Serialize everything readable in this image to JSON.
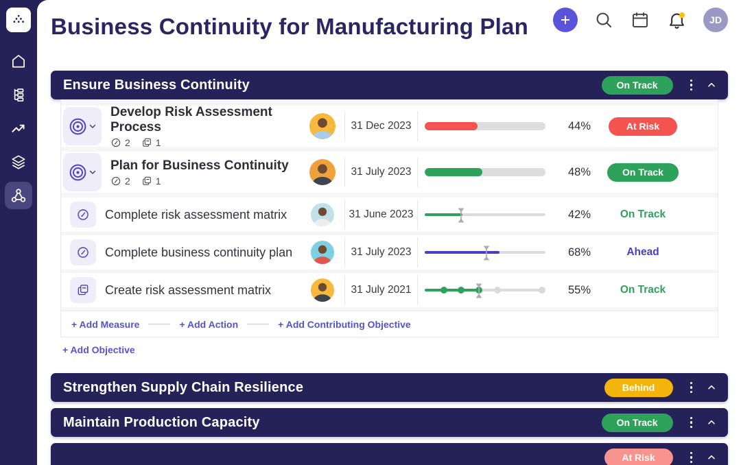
{
  "colors": {
    "navy": "#252159",
    "accent_purple": "#5A54D8",
    "link_purple": "#5553C6",
    "green": "#2EA15B",
    "red": "#F4534F",
    "amber": "#F3B50C",
    "salmon": "#F8938D",
    "slider_purple": "#4A40BC"
  },
  "header": {
    "title": "Business Continuity for Manufacturing Plan",
    "avatar_initials": "JD",
    "actions": [
      {
        "name": "add"
      },
      {
        "name": "search"
      },
      {
        "name": "calendar"
      },
      {
        "name": "notifications",
        "badge": true
      }
    ]
  },
  "sidebar": {
    "logo": "profit-logo",
    "items": [
      {
        "name": "home",
        "active": false
      },
      {
        "name": "structure",
        "active": false
      },
      {
        "name": "trend",
        "active": false
      },
      {
        "name": "layers",
        "active": false
      },
      {
        "name": "network",
        "active": true
      }
    ]
  },
  "sections": [
    {
      "title": "Ensure Business Continuity",
      "status": {
        "label": "On Track",
        "color": "#2EA15B"
      },
      "rows": [
        {
          "size": "lg",
          "tile_icon": "target",
          "title": "Develop Risk Assessment Process",
          "counts": [
            {
              "icon": "gauge",
              "value": "2"
            },
            {
              "icon": "copy",
              "value": "1"
            }
          ],
          "avatar": {
            "bg": "#F7B83E",
            "shirt": "#A9CCE9"
          },
          "date": "31 Dec 2023",
          "progress": {
            "type": "bar",
            "pct": 44,
            "color": "#F4534F"
          },
          "value": "44%",
          "status": {
            "label": "At Risk",
            "variant": "pill",
            "color": "#F4534F"
          }
        },
        {
          "size": "lg",
          "tile_icon": "target",
          "title": "Plan for Business Continuity",
          "counts": [
            {
              "icon": "gauge",
              "value": "2"
            },
            {
              "icon": "copy",
              "value": "1"
            }
          ],
          "avatar": {
            "bg": "#EFA13C",
            "shirt": "#3E4452"
          },
          "date": "31 July 2023",
          "progress": {
            "type": "bar",
            "pct": 48,
            "color": "#2EA15B"
          },
          "value": "48%",
          "status": {
            "label": "On Track",
            "variant": "pill",
            "color": "#2EA15B"
          }
        },
        {
          "size": "sm",
          "tile_icon": "gauge",
          "title": "Complete risk assessment matrix",
          "avatar": {
            "bg": "#C2E0E9",
            "shirt": "#EDEDED"
          },
          "date": "31 June 2023",
          "progress": {
            "type": "slider",
            "pct": 31,
            "marker": 30,
            "color": "#2EA15B"
          },
          "value": "42%",
          "status": {
            "label": "On Track",
            "variant": "text",
            "color": "#2EA15B"
          }
        },
        {
          "size": "sm",
          "tile_icon": "gauge",
          "title": "Complete business continuity plan",
          "avatar": {
            "bg": "#7CD0E2",
            "shirt": "#E2574D"
          },
          "date": "31 July 2023",
          "progress": {
            "type": "slider",
            "pct": 62,
            "marker": 51,
            "color": "#4A40BC"
          },
          "value": "68%",
          "status": {
            "label": "Ahead",
            "variant": "text",
            "color": "#4A40BC"
          }
        },
        {
          "size": "sm",
          "tile_icon": "copy",
          "title": "Create risk assessment matrix",
          "avatar": {
            "bg": "#F7B83E",
            "shirt": "#3E4452"
          },
          "date": "31 July 2021",
          "progress": {
            "type": "milestones",
            "pct": 45,
            "marker": 45,
            "color": "#2EA15B",
            "dots": [
              {
                "pos": 16,
                "done": true
              },
              {
                "pos": 30,
                "done": true
              },
              {
                "pos": 45,
                "done": true
              },
              {
                "pos": 60,
                "done": false
              },
              {
                "pos": 97,
                "done": false
              }
            ]
          },
          "value": "55%",
          "status": {
            "label": "On Track",
            "variant": "text",
            "color": "#2EA15B"
          }
        }
      ],
      "add_links": [
        "+ Add Measure",
        "+ Add Action",
        "+ Add Contributing Objective"
      ],
      "add_objective": "+ Add Objective"
    },
    {
      "title": "Strengthen Supply Chain Resilience",
      "status": {
        "label": "Behind",
        "color": "#F3B50C"
      }
    },
    {
      "title": "Maintain Production Capacity",
      "status": {
        "label": "On Track",
        "color": "#2EA15B"
      }
    },
    {
      "title": "",
      "status": {
        "label": "At Risk",
        "color": "#F8938D"
      }
    }
  ]
}
